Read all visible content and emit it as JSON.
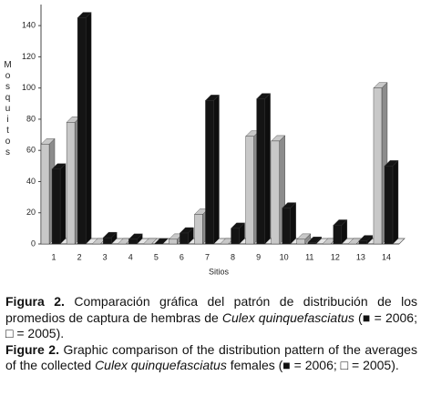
{
  "chart_data": {
    "type": "bar3d",
    "y_label": "Mosquitos",
    "x_label": "Sitios",
    "categories": [
      "1",
      "2",
      "3",
      "4",
      "5",
      "6",
      "7",
      "8",
      "9",
      "10",
      "11",
      "12",
      "13",
      "14"
    ],
    "series": [
      {
        "name": "2005",
        "color": "#c8c8c8",
        "values": [
          64,
          78,
          0,
          0,
          0,
          3,
          19,
          0,
          69,
          66,
          3,
          0,
          0,
          100
        ]
      },
      {
        "name": "2006",
        "color": "#141414",
        "values": [
          48,
          145,
          4,
          3,
          0,
          7,
          92,
          10,
          93,
          23,
          1,
          12,
          2,
          50
        ]
      }
    ],
    "ylim": [
      0,
      150
    ],
    "yticks": [
      0,
      20,
      40,
      60,
      80,
      100,
      120,
      140
    ]
  },
  "caption": {
    "es_label": "Figura 2.",
    "es_text": " Comparación gráfica del patrón de distribución de los promedios de captura de hembras de ",
    "species": "Culex quinquefasciatus",
    "open": " (■ = ",
    "mid": "; □ = ",
    "close": ").",
    "en_label": "Figure 2.",
    "en_text": " Graphic comparison of the distribution pattern of the averages of the collected ",
    "en_after": " females"
  }
}
